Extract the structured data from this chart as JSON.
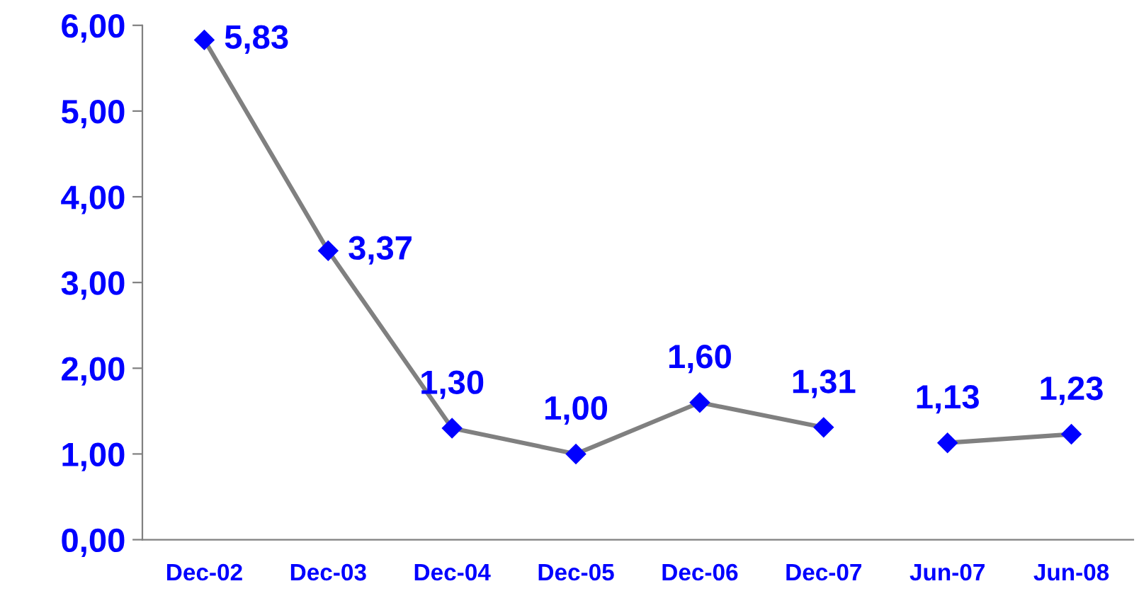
{
  "chart_data": {
    "type": "line",
    "categories": [
      "Dec-02",
      "Dec-03",
      "Dec-04",
      "Dec-05",
      "Dec-06",
      "Dec-07",
      "Jun-07",
      "Jun-08"
    ],
    "series": [
      {
        "color": "#808080",
        "colors": [
          "#0000ff",
          "#0000ff",
          "#0000ff",
          "#0000ff",
          "#0000ff",
          "#0000ff",
          null,
          null
        ],
        "values": [
          5.83,
          3.37,
          1.3,
          1.0,
          1.6,
          1.31,
          null,
          null
        ],
        "value_labels": [
          "5,83",
          "3,37",
          "1,30",
          "1,00",
          "1,60",
          "1,31",
          null,
          null
        ]
      },
      {
        "color": "#808080",
        "colors": [
          null,
          null,
          null,
          null,
          null,
          null,
          "#0000ff",
          "#0000ff"
        ],
        "values": [
          null,
          null,
          null,
          null,
          null,
          null,
          1.13,
          1.23
        ],
        "value_labels": [
          null,
          null,
          null,
          null,
          null,
          null,
          "1,13",
          "1,23"
        ]
      }
    ],
    "ylim": [
      0,
      6
    ],
    "yticks": [
      {
        "value": 0,
        "label": "0,00"
      },
      {
        "value": 1,
        "label": "1,00"
      },
      {
        "value": 2,
        "label": "2,00"
      },
      {
        "value": 3,
        "label": "3,00"
      },
      {
        "value": 4,
        "label": "4,00"
      },
      {
        "value": 5,
        "label": "5,00"
      },
      {
        "value": 6,
        "label": "6,00"
      }
    ],
    "marker": "diamond",
    "line_style": "solid",
    "grid": false,
    "legend": false
  }
}
